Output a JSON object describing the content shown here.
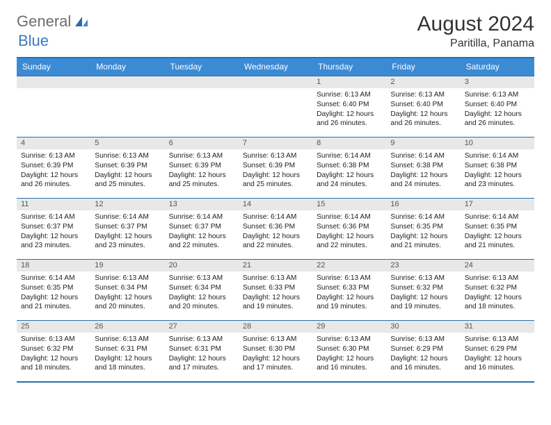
{
  "brand": {
    "general": "General",
    "blue": "Blue"
  },
  "header": {
    "month_title": "August 2024",
    "location": "Paritilla, Panama"
  },
  "colors": {
    "header_bg": "#3b8bd4",
    "header_text": "#ffffff",
    "row_rule": "#2a6eab",
    "daynum_bg": "#e8e8e8",
    "logo_gray": "#6d6d6d",
    "logo_blue": "#3b7bbf",
    "body_text": "#222222"
  },
  "days_of_week": [
    "Sunday",
    "Monday",
    "Tuesday",
    "Wednesday",
    "Thursday",
    "Friday",
    "Saturday"
  ],
  "weeks": [
    [
      {
        "empty": true
      },
      {
        "empty": true
      },
      {
        "empty": true
      },
      {
        "empty": true
      },
      {
        "num": "1",
        "sunrise": "Sunrise: 6:13 AM",
        "sunset": "Sunset: 6:40 PM",
        "dl1": "Daylight: 12 hours",
        "dl2": "and 26 minutes."
      },
      {
        "num": "2",
        "sunrise": "Sunrise: 6:13 AM",
        "sunset": "Sunset: 6:40 PM",
        "dl1": "Daylight: 12 hours",
        "dl2": "and 26 minutes."
      },
      {
        "num": "3",
        "sunrise": "Sunrise: 6:13 AM",
        "sunset": "Sunset: 6:40 PM",
        "dl1": "Daylight: 12 hours",
        "dl2": "and 26 minutes."
      }
    ],
    [
      {
        "num": "4",
        "sunrise": "Sunrise: 6:13 AM",
        "sunset": "Sunset: 6:39 PM",
        "dl1": "Daylight: 12 hours",
        "dl2": "and 26 minutes."
      },
      {
        "num": "5",
        "sunrise": "Sunrise: 6:13 AM",
        "sunset": "Sunset: 6:39 PM",
        "dl1": "Daylight: 12 hours",
        "dl2": "and 25 minutes."
      },
      {
        "num": "6",
        "sunrise": "Sunrise: 6:13 AM",
        "sunset": "Sunset: 6:39 PM",
        "dl1": "Daylight: 12 hours",
        "dl2": "and 25 minutes."
      },
      {
        "num": "7",
        "sunrise": "Sunrise: 6:13 AM",
        "sunset": "Sunset: 6:39 PM",
        "dl1": "Daylight: 12 hours",
        "dl2": "and 25 minutes."
      },
      {
        "num": "8",
        "sunrise": "Sunrise: 6:14 AM",
        "sunset": "Sunset: 6:38 PM",
        "dl1": "Daylight: 12 hours",
        "dl2": "and 24 minutes."
      },
      {
        "num": "9",
        "sunrise": "Sunrise: 6:14 AM",
        "sunset": "Sunset: 6:38 PM",
        "dl1": "Daylight: 12 hours",
        "dl2": "and 24 minutes."
      },
      {
        "num": "10",
        "sunrise": "Sunrise: 6:14 AM",
        "sunset": "Sunset: 6:38 PM",
        "dl1": "Daylight: 12 hours",
        "dl2": "and 23 minutes."
      }
    ],
    [
      {
        "num": "11",
        "sunrise": "Sunrise: 6:14 AM",
        "sunset": "Sunset: 6:37 PM",
        "dl1": "Daylight: 12 hours",
        "dl2": "and 23 minutes."
      },
      {
        "num": "12",
        "sunrise": "Sunrise: 6:14 AM",
        "sunset": "Sunset: 6:37 PM",
        "dl1": "Daylight: 12 hours",
        "dl2": "and 23 minutes."
      },
      {
        "num": "13",
        "sunrise": "Sunrise: 6:14 AM",
        "sunset": "Sunset: 6:37 PM",
        "dl1": "Daylight: 12 hours",
        "dl2": "and 22 minutes."
      },
      {
        "num": "14",
        "sunrise": "Sunrise: 6:14 AM",
        "sunset": "Sunset: 6:36 PM",
        "dl1": "Daylight: 12 hours",
        "dl2": "and 22 minutes."
      },
      {
        "num": "15",
        "sunrise": "Sunrise: 6:14 AM",
        "sunset": "Sunset: 6:36 PM",
        "dl1": "Daylight: 12 hours",
        "dl2": "and 22 minutes."
      },
      {
        "num": "16",
        "sunrise": "Sunrise: 6:14 AM",
        "sunset": "Sunset: 6:35 PM",
        "dl1": "Daylight: 12 hours",
        "dl2": "and 21 minutes."
      },
      {
        "num": "17",
        "sunrise": "Sunrise: 6:14 AM",
        "sunset": "Sunset: 6:35 PM",
        "dl1": "Daylight: 12 hours",
        "dl2": "and 21 minutes."
      }
    ],
    [
      {
        "num": "18",
        "sunrise": "Sunrise: 6:14 AM",
        "sunset": "Sunset: 6:35 PM",
        "dl1": "Daylight: 12 hours",
        "dl2": "and 21 minutes."
      },
      {
        "num": "19",
        "sunrise": "Sunrise: 6:13 AM",
        "sunset": "Sunset: 6:34 PM",
        "dl1": "Daylight: 12 hours",
        "dl2": "and 20 minutes."
      },
      {
        "num": "20",
        "sunrise": "Sunrise: 6:13 AM",
        "sunset": "Sunset: 6:34 PM",
        "dl1": "Daylight: 12 hours",
        "dl2": "and 20 minutes."
      },
      {
        "num": "21",
        "sunrise": "Sunrise: 6:13 AM",
        "sunset": "Sunset: 6:33 PM",
        "dl1": "Daylight: 12 hours",
        "dl2": "and 19 minutes."
      },
      {
        "num": "22",
        "sunrise": "Sunrise: 6:13 AM",
        "sunset": "Sunset: 6:33 PM",
        "dl1": "Daylight: 12 hours",
        "dl2": "and 19 minutes."
      },
      {
        "num": "23",
        "sunrise": "Sunrise: 6:13 AM",
        "sunset": "Sunset: 6:32 PM",
        "dl1": "Daylight: 12 hours",
        "dl2": "and 19 minutes."
      },
      {
        "num": "24",
        "sunrise": "Sunrise: 6:13 AM",
        "sunset": "Sunset: 6:32 PM",
        "dl1": "Daylight: 12 hours",
        "dl2": "and 18 minutes."
      }
    ],
    [
      {
        "num": "25",
        "sunrise": "Sunrise: 6:13 AM",
        "sunset": "Sunset: 6:32 PM",
        "dl1": "Daylight: 12 hours",
        "dl2": "and 18 minutes."
      },
      {
        "num": "26",
        "sunrise": "Sunrise: 6:13 AM",
        "sunset": "Sunset: 6:31 PM",
        "dl1": "Daylight: 12 hours",
        "dl2": "and 18 minutes."
      },
      {
        "num": "27",
        "sunrise": "Sunrise: 6:13 AM",
        "sunset": "Sunset: 6:31 PM",
        "dl1": "Daylight: 12 hours",
        "dl2": "and 17 minutes."
      },
      {
        "num": "28",
        "sunrise": "Sunrise: 6:13 AM",
        "sunset": "Sunset: 6:30 PM",
        "dl1": "Daylight: 12 hours",
        "dl2": "and 17 minutes."
      },
      {
        "num": "29",
        "sunrise": "Sunrise: 6:13 AM",
        "sunset": "Sunset: 6:30 PM",
        "dl1": "Daylight: 12 hours",
        "dl2": "and 16 minutes."
      },
      {
        "num": "30",
        "sunrise": "Sunrise: 6:13 AM",
        "sunset": "Sunset: 6:29 PM",
        "dl1": "Daylight: 12 hours",
        "dl2": "and 16 minutes."
      },
      {
        "num": "31",
        "sunrise": "Sunrise: 6:13 AM",
        "sunset": "Sunset: 6:29 PM",
        "dl1": "Daylight: 12 hours",
        "dl2": "and 16 minutes."
      }
    ]
  ]
}
